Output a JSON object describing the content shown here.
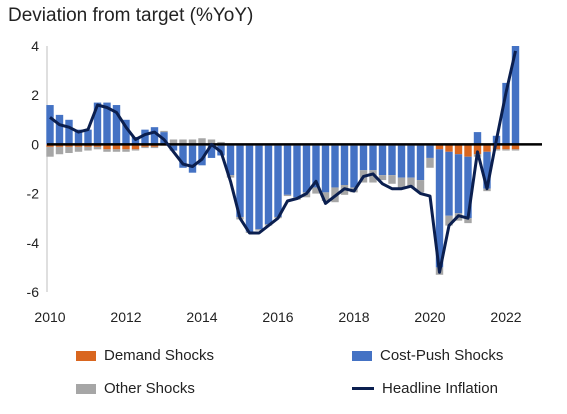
{
  "chart_data": {
    "type": "bar",
    "title": "Deviation from target (%YoY)",
    "xlabel": "",
    "ylabel": "",
    "ylim": [
      -6,
      4
    ],
    "yticks": [
      4,
      2,
      0,
      -2,
      -4,
      -6
    ],
    "x_range": [
      2010.0,
      2022.5
    ],
    "xticks": [
      {
        "value": 2010,
        "label": "2010"
      },
      {
        "value": 2012,
        "label": "2012"
      },
      {
        "value": 2014,
        "label": "2014"
      },
      {
        "value": 2016,
        "label": "2016"
      },
      {
        "value": 2018,
        "label": "2018"
      },
      {
        "value": 2020,
        "label": "2020"
      },
      {
        "value": 2022,
        "label": "2022"
      }
    ],
    "stacked": true,
    "legend_position": "bottom",
    "x": [
      2010.0,
      2010.25,
      2010.5,
      2010.75,
      2011.0,
      2011.25,
      2011.5,
      2011.75,
      2012.0,
      2012.25,
      2012.5,
      2012.75,
      2013.0,
      2013.25,
      2013.5,
      2013.75,
      2014.0,
      2014.25,
      2014.5,
      2014.75,
      2015.0,
      2015.25,
      2015.5,
      2015.75,
      2016.0,
      2016.25,
      2016.5,
      2016.75,
      2017.0,
      2017.25,
      2017.5,
      2017.75,
      2018.0,
      2018.25,
      2018.5,
      2018.75,
      2019.0,
      2019.25,
      2019.5,
      2019.75,
      2020.0,
      2020.25,
      2020.5,
      2020.75,
      2021.0,
      2021.25,
      2021.5,
      2021.75,
      2022.0,
      2022.25
    ],
    "series": [
      {
        "name": "Demand Shocks",
        "color": "#d9661f",
        "values": [
          -0.1,
          -0.1,
          -0.1,
          -0.1,
          -0.1,
          -0.1,
          -0.2,
          -0.2,
          -0.2,
          -0.2,
          -0.1,
          -0.1,
          -0.05,
          -0.05,
          -0.05,
          -0.05,
          -0.05,
          -0.05,
          -0.05,
          -0.05,
          -0.05,
          -0.05,
          -0.05,
          -0.05,
          -0.05,
          -0.05,
          -0.05,
          -0.05,
          -0.05,
          -0.05,
          -0.05,
          -0.05,
          -0.05,
          -0.05,
          -0.05,
          -0.05,
          -0.05,
          -0.05,
          -0.05,
          -0.05,
          -0.05,
          -0.2,
          -0.3,
          -0.4,
          -0.5,
          -0.4,
          -0.3,
          -0.2,
          -0.2,
          -0.2
        ]
      },
      {
        "name": "Cost-Push Shocks",
        "color": "#4472c4",
        "values": [
          1.6,
          1.2,
          1.0,
          0.6,
          0.6,
          1.7,
          1.7,
          1.6,
          1.0,
          0.3,
          0.6,
          0.7,
          0.5,
          -0.2,
          -0.9,
          -1.1,
          -0.8,
          -0.5,
          -0.4,
          -1.2,
          -2.9,
          -3.5,
          -3.4,
          -3.2,
          -2.9,
          -2.0,
          -2.1,
          -1.9,
          -1.7,
          -1.9,
          -1.7,
          -1.6,
          -1.7,
          -1.0,
          -1.0,
          -1.2,
          -1.2,
          -1.3,
          -1.3,
          -1.4,
          -0.5,
          -4.8,
          -2.6,
          -2.4,
          -2.5,
          0.5,
          -1.5,
          0.35,
          2.5,
          4.0
        ]
      },
      {
        "name": "Other Shocks",
        "color": "#a6a6a6",
        "values": [
          -0.4,
          -0.3,
          -0.25,
          -0.2,
          -0.15,
          -0.1,
          -0.1,
          -0.1,
          -0.1,
          -0.05,
          -0.05,
          -0.05,
          0.05,
          0.2,
          0.2,
          0.2,
          0.25,
          0.2,
          0.1,
          -0.1,
          -0.1,
          -0.05,
          -0.05,
          -0.05,
          -0.05,
          -0.05,
          -0.1,
          -0.2,
          -0.25,
          -0.35,
          -0.6,
          -0.4,
          -0.2,
          -0.5,
          -0.5,
          -0.2,
          -0.35,
          -0.45,
          -0.4,
          -0.5,
          -0.4,
          -0.3,
          -0.4,
          -0.3,
          -0.2,
          -0.1,
          -0.1,
          -0.05,
          -0.05,
          -0.05
        ]
      },
      {
        "name": "Headline Inflation",
        "type": "line",
        "color": "#0b1f4f",
        "values": [
          1.1,
          0.8,
          0.7,
          0.5,
          0.6,
          1.6,
          1.5,
          1.3,
          0.7,
          0.2,
          0.4,
          0.5,
          0.2,
          -0.3,
          -0.8,
          -0.9,
          -0.6,
          0.0,
          -0.3,
          -1.5,
          -3.0,
          -3.6,
          -3.6,
          -3.3,
          -3.0,
          -2.3,
          -2.2,
          -2.0,
          -1.5,
          -2.4,
          -2.1,
          -1.8,
          -1.9,
          -1.3,
          -1.2,
          -1.6,
          -1.8,
          -1.8,
          -1.7,
          -2.0,
          -2.1,
          -5.2,
          -3.3,
          -2.9,
          -3.0,
          -0.3,
          -1.8,
          0.2,
          2.1,
          3.8
        ]
      }
    ]
  }
}
